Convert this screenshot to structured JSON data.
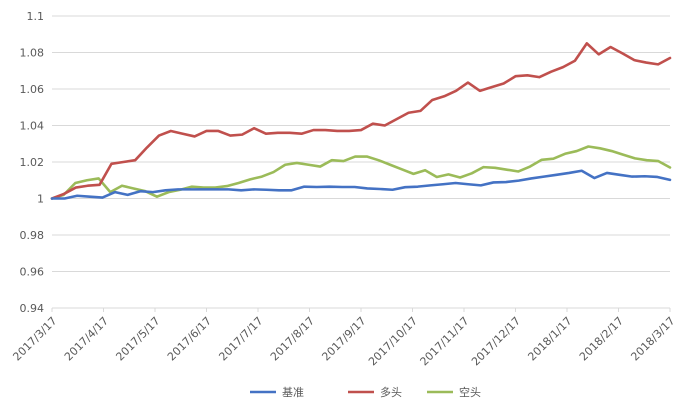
{
  "chart_data": {
    "type": "line",
    "title": "",
    "xlabel": "",
    "ylabel": "",
    "ylim": [
      0.94,
      1.1
    ],
    "y_ticks": [
      "0.94",
      "0.96",
      "0.98",
      "1",
      "1.02",
      "1.04",
      "1.06",
      "1.08",
      "1.1"
    ],
    "x_tick_labels": [
      "2017/3/17",
      "2017/4/17",
      "2017/5/17",
      "2017/6/17",
      "2017/7/17",
      "2017/8/17",
      "2017/9/17",
      "2017/10/17",
      "2017/11/17",
      "2017/12/17",
      "2018/1/17",
      "2018/2/17",
      "2018/3/17"
    ],
    "grid": "horizontal",
    "legend_position": "bottom",
    "series": [
      {
        "name": "基准",
        "color": "#4472C4",
        "values": [
          1.0,
          1.0,
          1.0015,
          1.001,
          1.0005,
          1.0035,
          1.002,
          1.004,
          1.0035,
          1.0045,
          1.005,
          1.005,
          1.005,
          1.005,
          1.005,
          1.0045,
          1.005,
          1.0048,
          1.0045,
          1.0045,
          1.0065,
          1.0063,
          1.0065,
          1.0063,
          1.0063,
          1.0055,
          1.0052,
          1.0048,
          1.0062,
          1.0065,
          1.0072,
          1.0078,
          1.0085,
          1.0078,
          1.0072,
          1.0088,
          1.009,
          1.0098,
          1.011,
          1.012,
          1.013,
          1.014,
          1.0152,
          1.0112,
          1.014,
          1.013,
          1.012,
          1.0122,
          1.0118,
          1.0102
        ]
      },
      {
        "name": "多头",
        "color": "#C0504D",
        "values": [
          1.0,
          1.0025,
          1.006,
          1.007,
          1.0075,
          1.019,
          1.02,
          1.021,
          1.028,
          1.0345,
          1.037,
          1.0355,
          1.034,
          1.037,
          1.037,
          1.0345,
          1.035,
          1.0385,
          1.0355,
          1.036,
          1.036,
          1.0355,
          1.0375,
          1.0375,
          1.037,
          1.037,
          1.0375,
          1.041,
          1.04,
          1.0435,
          1.047,
          1.048,
          1.054,
          1.056,
          1.059,
          1.0635,
          1.059,
          1.061,
          1.063,
          1.067,
          1.0675,
          1.0665,
          1.0695,
          1.072,
          1.0755,
          1.085,
          1.079,
          1.083,
          1.0795,
          1.0758,
          1.0745,
          1.0735,
          1.077
        ]
      },
      {
        "name": "空头",
        "color": "#9BBB59",
        "values": [
          1.0,
          1.002,
          1.0085,
          1.01,
          1.011,
          1.0035,
          1.007,
          1.0055,
          1.004,
          1.001,
          1.0035,
          1.0048,
          1.0065,
          1.006,
          1.006,
          1.0068,
          1.0085,
          1.0105,
          1.012,
          1.0145,
          1.0185,
          1.0195,
          1.0185,
          1.0175,
          1.021,
          1.0205,
          1.023,
          1.023,
          1.021,
          1.0185,
          1.016,
          1.0135,
          1.0155,
          1.0118,
          1.0132,
          1.0115,
          1.0138,
          1.0172,
          1.0168,
          1.0158,
          1.0148,
          1.0175,
          1.0212,
          1.0218,
          1.0245,
          1.026,
          1.0285,
          1.0275,
          1.026,
          1.024,
          1.022,
          1.021,
          1.0205,
          1.017
        ]
      }
    ]
  }
}
